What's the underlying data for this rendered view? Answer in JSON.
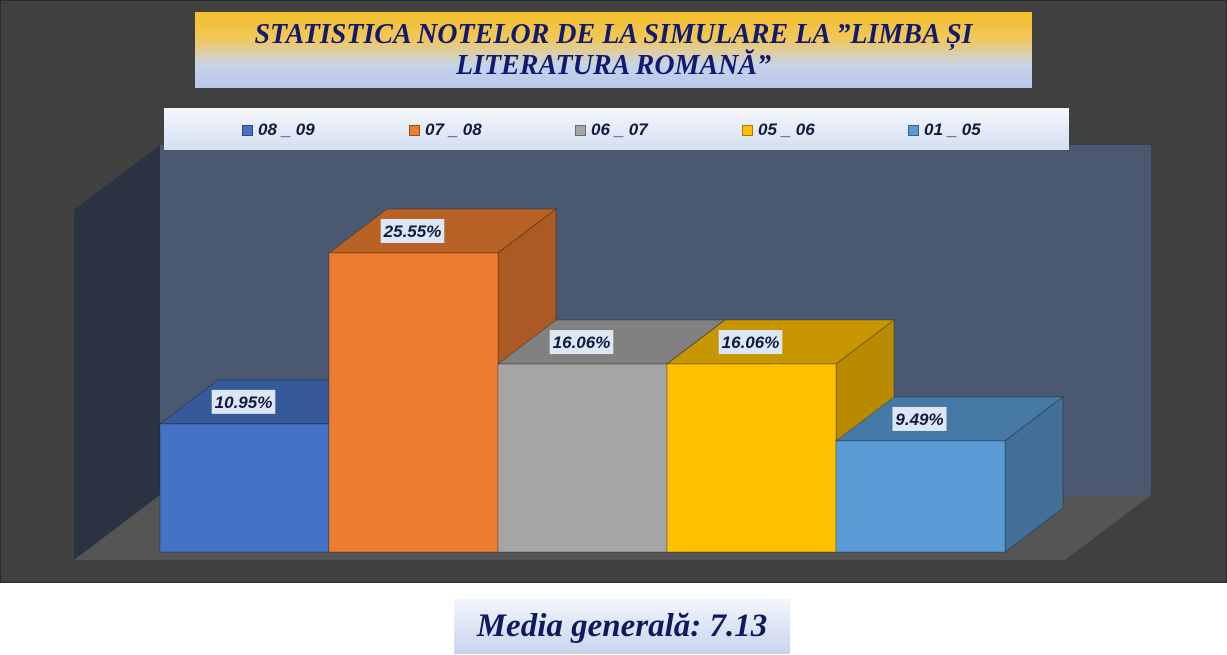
{
  "chart_data": {
    "type": "bar",
    "title": "STATISTICA NOTELOR DE  LA SIMULARE LA ”LIMBA ȘI LITERATURA ROMANĂ”",
    "legend_position": "top",
    "grid": false,
    "three_d": true,
    "categories": [
      "08 _ 09",
      "07 _ 08",
      "06 _ 07",
      "05 _ 06",
      "01 _ 05"
    ],
    "values": [
      10.95,
      25.55,
      16.06,
      16.06,
      9.49
    ],
    "data_labels": [
      "10.95%",
      "25.55%",
      "16.06%",
      "16.06%",
      "9.49%"
    ],
    "colors": [
      "#4472c4",
      "#ed7d31",
      "#a5a5a5",
      "#ffc000",
      "#5b9bd5"
    ],
    "ylim": [
      0,
      30
    ]
  },
  "footer": {
    "label": "Media generală: 7.13"
  },
  "colors": {
    "background": "#404040",
    "title_text": "#101a6e",
    "footer_text": "#0d1a5e"
  }
}
